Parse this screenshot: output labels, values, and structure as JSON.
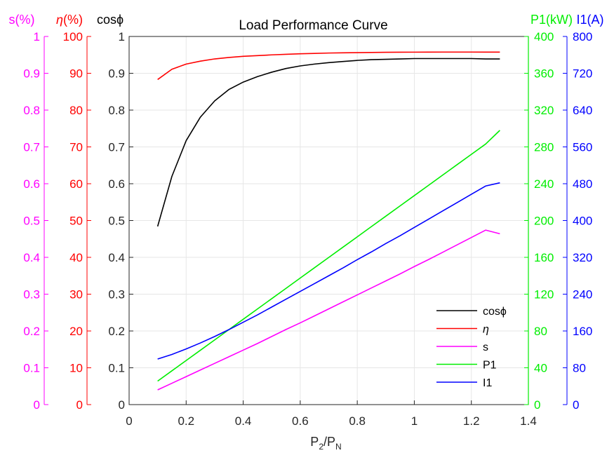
{
  "chart_data": {
    "type": "line",
    "title": "Load Performance Curve",
    "xlabel": {
      "base": "P",
      "base_sub": "2",
      "sep": "/P",
      "sep_sub": "N"
    },
    "xlim": [
      0,
      1.4
    ],
    "xticks": [
      "0",
      "0.2",
      "0.4",
      "0.6",
      "0.8",
      "1",
      "1.2",
      "1.4"
    ],
    "grid": true,
    "legend_position": "bottom-right",
    "axes": [
      {
        "id": "s",
        "side": "left",
        "label": "s(%)",
        "color": "#ff00ff",
        "lim": [
          0,
          1
        ],
        "ticks": [
          "0",
          "0.1",
          "0.2",
          "0.3",
          "0.4",
          "0.5",
          "0.6",
          "0.7",
          "0.8",
          "0.9",
          "1"
        ]
      },
      {
        "id": "eta",
        "side": "left",
        "label_prefix": "η",
        "label_suffix": "(%)",
        "color": "#ff0000",
        "lim": [
          0,
          100
        ],
        "ticks": [
          "0",
          "10",
          "20",
          "30",
          "40",
          "50",
          "60",
          "70",
          "80",
          "90",
          "100"
        ]
      },
      {
        "id": "cos",
        "side": "left",
        "label_prefix": "cos",
        "label_suffix": "ϕ",
        "color": "#000000",
        "lim": [
          0,
          1
        ],
        "ticks": [
          "0",
          "0.1",
          "0.2",
          "0.3",
          "0.4",
          "0.5",
          "0.6",
          "0.7",
          "0.8",
          "0.9",
          "1"
        ]
      },
      {
        "id": "p1",
        "side": "right",
        "label": "P1(kW)",
        "color": "#00ee00",
        "lim": [
          0,
          400
        ],
        "ticks": [
          "0",
          "40",
          "80",
          "120",
          "160",
          "200",
          "240",
          "280",
          "320",
          "360",
          "400"
        ]
      },
      {
        "id": "i1",
        "side": "right",
        "label": "I1(A)",
        "color": "#0000ff",
        "lim": [
          0,
          800
        ],
        "ticks": [
          "0",
          "80",
          "160",
          "240",
          "320",
          "400",
          "480",
          "560",
          "640",
          "720",
          "800"
        ]
      }
    ],
    "x": [
      0.1,
      0.15,
      0.2,
      0.25,
      0.3,
      0.35,
      0.4,
      0.45,
      0.5,
      0.55,
      0.6,
      0.65,
      0.7,
      0.75,
      0.8,
      0.85,
      0.9,
      0.95,
      1.0,
      1.05,
      1.1,
      1.15,
      1.2,
      1.25,
      1.3
    ],
    "series": [
      {
        "name_prefix": "cos",
        "name_suffix": "ϕ",
        "axis": "cos",
        "color": "#000000",
        "values": [
          0.484,
          0.62,
          0.717,
          0.781,
          0.825,
          0.856,
          0.876,
          0.891,
          0.903,
          0.913,
          0.92,
          0.925,
          0.929,
          0.932,
          0.935,
          0.937,
          0.938,
          0.939,
          0.94,
          0.94,
          0.94,
          0.94,
          0.94,
          0.939,
          0.939
        ]
      },
      {
        "name": "η",
        "axis": "eta",
        "color": "#ff0000",
        "values": [
          88.3,
          91.1,
          92.5,
          93.3,
          93.9,
          94.3,
          94.6,
          94.8,
          95.0,
          95.15,
          95.3,
          95.4,
          95.5,
          95.55,
          95.6,
          95.65,
          95.7,
          95.72,
          95.74,
          95.75,
          95.76,
          95.76,
          95.76,
          95.75,
          95.75
        ]
      },
      {
        "name": "s",
        "axis": "s",
        "color": "#ff00ff",
        "values": [
          0.04,
          0.058,
          0.076,
          0.094,
          0.112,
          0.13,
          0.148,
          0.166,
          0.185,
          0.204,
          0.222,
          0.241,
          0.26,
          0.279,
          0.298,
          0.317,
          0.336,
          0.355,
          0.375,
          0.394,
          0.414,
          0.434,
          0.454,
          0.474,
          0.464
        ]
      },
      {
        "name": "P1",
        "axis": "p1",
        "color": "#00ee00",
        "values": [
          25.5,
          36.7,
          47.9,
          59.1,
          70.3,
          81.5,
          92.7,
          103.9,
          115.1,
          126.3,
          137.5,
          148.7,
          159.9,
          171.1,
          182.3,
          193.5,
          204.7,
          215.9,
          227.1,
          238.3,
          249.5,
          260.7,
          271.9,
          283.1,
          298.0
        ]
      },
      {
        "name": "I1",
        "axis": "i1",
        "color": "#0000ff",
        "values": [
          99,
          109,
          121,
          134,
          148,
          163,
          179,
          195,
          212,
          229,
          246,
          263,
          280,
          297,
          315,
          332,
          350,
          367,
          385,
          403,
          421,
          439,
          457,
          475,
          482
        ]
      }
    ]
  }
}
